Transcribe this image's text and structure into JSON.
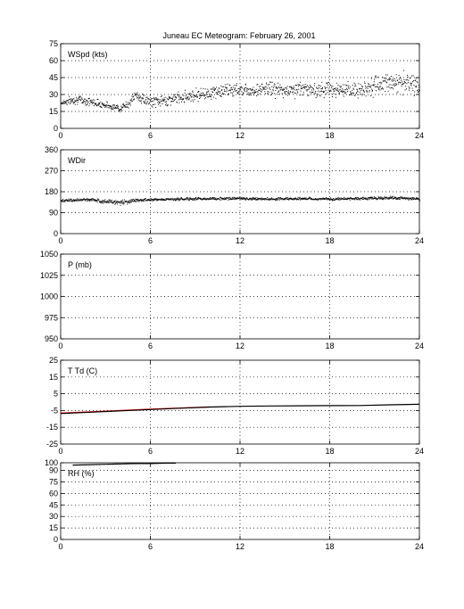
{
  "title": "Juneau EC Meteogram:  February 26, 2001",
  "chart_data": [
    {
      "type": "scatter",
      "panel_label": "WSpd (kts)",
      "xlim": [
        0,
        24
      ],
      "xticks": [
        0,
        6,
        12,
        18,
        24
      ],
      "ylim": [
        0,
        75
      ],
      "yticks": [
        0,
        15,
        30,
        45,
        60,
        75
      ],
      "grid": true,
      "series": [
        {
          "color": "#000000",
          "x": [
            0,
            1,
            2,
            3,
            4,
            4.5,
            5,
            5.5,
            6,
            7,
            8,
            9,
            10,
            11,
            12,
            13,
            14,
            15,
            16,
            17,
            18,
            19,
            20,
            21,
            22,
            23,
            24
          ],
          "y": [
            23,
            26,
            24,
            21,
            18,
            22,
            30,
            26,
            24,
            25,
            28,
            30,
            32,
            34,
            35,
            34,
            36,
            33,
            36,
            34,
            36,
            33,
            35,
            38,
            42,
            40,
            38
          ],
          "spread": [
            3,
            4,
            4,
            3,
            3,
            4,
            5,
            5,
            5,
            5,
            5,
            6,
            6,
            6,
            6,
            6,
            7,
            7,
            7,
            7,
            7,
            7,
            8,
            8,
            9,
            9,
            9
          ]
        }
      ]
    },
    {
      "type": "scatter",
      "panel_label": "WDir",
      "xlim": [
        0,
        24
      ],
      "xticks": [
        0,
        6,
        12,
        18,
        24
      ],
      "ylim": [
        0,
        360
      ],
      "yticks": [
        0,
        90,
        180,
        270,
        360
      ],
      "grid": true,
      "series": [
        {
          "color": "#000000",
          "x": [
            0,
            2,
            3,
            4,
            5,
            6,
            8,
            10,
            12,
            14,
            16,
            18,
            20,
            22,
            24
          ],
          "y": [
            143,
            148,
            140,
            135,
            145,
            148,
            150,
            152,
            153,
            150,
            152,
            150,
            153,
            155,
            150
          ],
          "spread": [
            6,
            7,
            10,
            12,
            8,
            7,
            6,
            6,
            6,
            6,
            6,
            6,
            6,
            7,
            7
          ]
        }
      ]
    },
    {
      "type": "line",
      "panel_label": "P (mb)",
      "xlim": [
        0,
        24
      ],
      "xticks": [
        0,
        6,
        12,
        18,
        24
      ],
      "ylim": [
        950,
        1050
      ],
      "yticks": [
        950,
        975,
        1000,
        1025,
        1050
      ],
      "grid": true,
      "series": []
    },
    {
      "type": "line",
      "panel_label": "T Td (C)",
      "xlim": [
        0,
        24
      ],
      "xticks": [
        0,
        6,
        12,
        18,
        24
      ],
      "ylim": [
        -25,
        25
      ],
      "yticks": [
        -25,
        -15,
        -5,
        5,
        15,
        25
      ],
      "grid": true,
      "series": [
        {
          "color": "#ff0000",
          "x": [
            0,
            2,
            4,
            6,
            8,
            10
          ],
          "y": [
            -6.5,
            -5.8,
            -5,
            -4.2,
            -3.5,
            -2.8
          ]
        },
        {
          "color": "#000000",
          "x": [
            0,
            2,
            4,
            6,
            8,
            10,
            12,
            14,
            16,
            18,
            20,
            22,
            24
          ],
          "y": [
            -6.8,
            -6,
            -5.2,
            -4.4,
            -3.6,
            -2.9,
            -2.5,
            -2.3,
            -2.2,
            -2.1,
            -2.0,
            -1.6,
            -1.3
          ]
        }
      ]
    },
    {
      "type": "line",
      "panel_label": "RH (%)",
      "xlim": [
        0,
        24
      ],
      "xticks": [
        0,
        6,
        12,
        18,
        24
      ],
      "ylim": [
        0,
        100
      ],
      "yticks": [
        0,
        15,
        30,
        45,
        60,
        75,
        90,
        100
      ],
      "grid": true,
      "series": [
        {
          "color": "#000000",
          "x": [
            0.8,
            2,
            3,
            4,
            5,
            6,
            7,
            7.7
          ],
          "y": [
            97,
            97.5,
            98,
            98.5,
            99,
            99,
            99.5,
            99.5
          ]
        }
      ]
    }
  ]
}
